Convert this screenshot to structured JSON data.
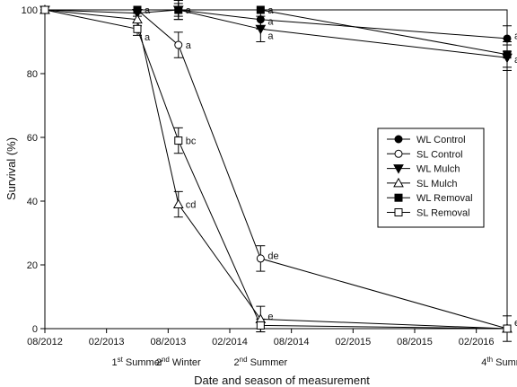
{
  "chart_data": {
    "type": "line",
    "xlabel": "Date and season of measurement",
    "ylabel": "Survival (%)",
    "ylim": [
      0,
      100
    ],
    "xlim": [
      "2012-08",
      "2016-05"
    ],
    "x_ticks": [
      "08/2012",
      "02/2013",
      "08/2013",
      "02/2014",
      "08/2014",
      "02/2015",
      "08/2015",
      "02/2016"
    ],
    "y_ticks": [
      0,
      20,
      40,
      60,
      80,
      100
    ],
    "seasons": [
      {
        "num": "1",
        "sup": "st",
        "label": "Summer",
        "date": "2013-05"
      },
      {
        "num": "2",
        "sup": "nd",
        "label": "Winter",
        "date": "2013-09"
      },
      {
        "num": "2",
        "sup": "nd",
        "label": "Summer",
        "date": "2014-05"
      },
      {
        "num": "4",
        "sup": "th",
        "label": "Summer",
        "date": "2016-05"
      }
    ],
    "legend_position": "center-right",
    "x": [
      "2012-08",
      "2013-05",
      "2013-09",
      "2014-05",
      "2016-05"
    ],
    "series": [
      {
        "name": "WL Control",
        "marker": "circle",
        "filled": true,
        "values": [
          100,
          100,
          100,
          97,
          91
        ],
        "errors": [
          0,
          0,
          3,
          3,
          4
        ]
      },
      {
        "name": "SL Control",
        "marker": "circle",
        "filled": false,
        "values": [
          100,
          100,
          89,
          22,
          0
        ],
        "errors": [
          0,
          0,
          4,
          4,
          4
        ]
      },
      {
        "name": "WL Mulch",
        "marker": "triangle-down",
        "filled": true,
        "values": [
          100,
          99,
          100,
          94,
          85
        ],
        "errors": [
          0,
          1,
          3,
          4,
          4
        ]
      },
      {
        "name": "SL Mulch",
        "marker": "triangle-up",
        "filled": false,
        "values": [
          100,
          97,
          39,
          3,
          0
        ],
        "errors": [
          0,
          2,
          4,
          4,
          0
        ]
      },
      {
        "name": "WL Removal",
        "marker": "square",
        "filled": true,
        "values": [
          100,
          100,
          100,
          100,
          86
        ],
        "errors": [
          0,
          0,
          2,
          0,
          4
        ]
      },
      {
        "name": "SL Removal",
        "marker": "square",
        "filled": false,
        "values": [
          100,
          94,
          59,
          1,
          0
        ],
        "errors": [
          0,
          2,
          4,
          2,
          0
        ]
      }
    ],
    "annotations": [
      {
        "text": "a",
        "x": "2013-05",
        "y": 100
      },
      {
        "text": "a",
        "x": "2013-05",
        "y": 91.5
      },
      {
        "text": "a",
        "x": "2013-09",
        "y": 100
      },
      {
        "text": "a",
        "x": "2013-09",
        "y": 89
      },
      {
        "text": "bc",
        "x": "2013-09",
        "y": 59
      },
      {
        "text": "cd",
        "x": "2013-09",
        "y": 39
      },
      {
        "text": "a",
        "x": "2014-05",
        "y": 100
      },
      {
        "text": "a",
        "x": "2014-05",
        "y": 96.5
      },
      {
        "text": "a",
        "x": "2014-05",
        "y": 92
      },
      {
        "text": "de",
        "x": "2014-05",
        "y": 23
      },
      {
        "text": "e",
        "x": "2014-05",
        "y": 4
      },
      {
        "text": "a",
        "x": "2016-05",
        "y": 92
      },
      {
        "text": "a",
        "x": "2016-05",
        "y": 84.5
      },
      {
        "text": "e",
        "x": "2016-05",
        "y": 2
      }
    ]
  }
}
